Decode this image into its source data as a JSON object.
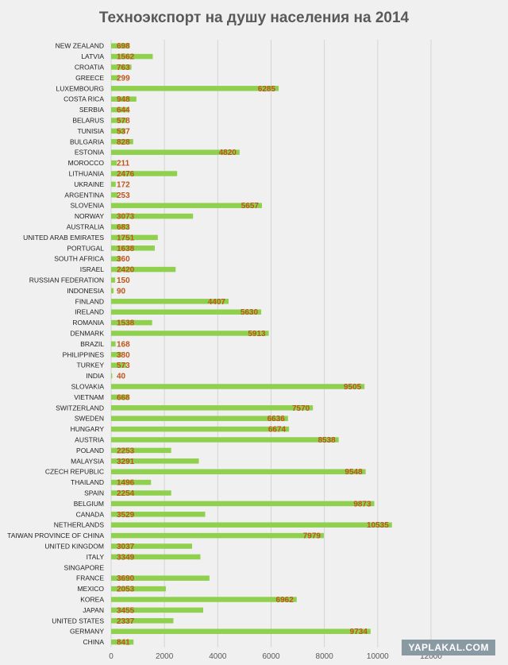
{
  "chart_data": {
    "type": "bar",
    "orientation": "horizontal",
    "title": "Техноэкспорт на душу населения на 2014",
    "xlim": [
      0,
      12000
    ],
    "xticks": [
      0,
      2000,
      4000,
      6000,
      8000,
      10000,
      12000
    ],
    "grid": true,
    "bar_color": "#8fd14f",
    "label_color": "#c0541a",
    "categories": [
      "NEW ZEALAND",
      "LATVIA",
      "CROATIA",
      "GREECE",
      "LUXEMBOURG",
      "COSTA RICA",
      "SERBIA",
      "BELARUS",
      "TUNISIA",
      "BULGARIA",
      "ESTONIA",
      "MOROCCO",
      "LITHUANIA",
      "UKRAINE",
      "ARGENTINA",
      "SLOVENIA",
      "NORWAY",
      "AUSTRALIA",
      "UNITED ARAB EMIRATES",
      "PORTUGAL",
      "SOUTH AFRICA",
      "ISRAEL",
      "RUSSIAN FEDERATION",
      "INDONESIA",
      "FINLAND",
      "IRELAND",
      "ROMANIA",
      "DENMARK",
      "BRAZIL",
      "PHILIPPINES",
      "TURKEY",
      "INDIA",
      "SLOVAKIA",
      "VIETNAM",
      "SWITZERLAND",
      "SWEDEN",
      "HUNGARY",
      "AUSTRIA",
      "POLAND",
      "MALAYSIA",
      "CZECH REPUBLIC",
      "THAILAND",
      "SPAIN",
      "BELGIUM",
      "CANADA",
      "NETHERLANDS",
      "TAIWAN PROVINCE OF CHINA",
      "UNITED KINGDOM",
      "ITALY",
      "SINGAPORE",
      "FRANCE",
      "MEXICO",
      "KOREA",
      "JAPAN",
      "UNITED STATES",
      "GERMANY",
      "CHINA"
    ],
    "values": [
      698,
      1562,
      763,
      299,
      6285,
      948,
      644,
      578,
      537,
      828,
      4820,
      211,
      2476,
      172,
      253,
      5657,
      3073,
      683,
      1751,
      1638,
      360,
      2420,
      150,
      90,
      4407,
      5630,
      1538,
      5913,
      168,
      380,
      573,
      40,
      9505,
      668,
      7570,
      6636,
      6674,
      8538,
      2253,
      3291,
      9548,
      1496,
      2254,
      9873,
      3529,
      10535,
      7979,
      3037,
      3349,
      null,
      3690,
      2053,
      6962,
      3455,
      2337,
      9734,
      841
    ],
    "data_labels": [
      "698",
      "1562",
      "763",
      "299",
      "6285",
      "948",
      "644",
      "578",
      "537",
      "828",
      "4820",
      "211",
      "2476",
      "172",
      "253",
      "5657",
      "3073",
      "683",
      "1751",
      "1638",
      "360",
      "2420",
      "150",
      "90",
      "4407",
      "5630",
      "1538",
      "5913",
      "168",
      "380",
      "573",
      "40",
      "9505",
      "668",
      "7570",
      "6636",
      "6674",
      "8538",
      "2253",
      "3291",
      "9548",
      "1496",
      "2254",
      "9873",
      "3529",
      "10535",
      "7979",
      "3037",
      "3349",
      "",
      "3690",
      "2053",
      "6962",
      "3455",
      "2337",
      "9734",
      "841"
    ]
  },
  "watermark": "YAPLAKAL.COM"
}
